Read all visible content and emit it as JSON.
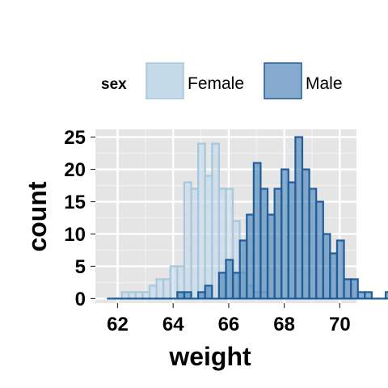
{
  "chart_data": {
    "type": "histogram",
    "xlabel": "weight",
    "ylabel": "count",
    "xlim": [
      61.2,
      70.6
    ],
    "ylim": [
      -0.7,
      26.2
    ],
    "xticks": [
      62,
      64,
      66,
      68,
      70
    ],
    "yticks": [
      0,
      5,
      10,
      15,
      20,
      25
    ],
    "grid": true,
    "legend": {
      "title": "sex",
      "position": "top"
    },
    "bin_start": 61.65,
    "bin_width": 0.25,
    "series": [
      {
        "name": "Female",
        "fill": "#c3d9e8",
        "stroke": "#a5c8df",
        "values": [
          0,
          0,
          1,
          1,
          1,
          1,
          2,
          3,
          3,
          5,
          5,
          18,
          17,
          24,
          19,
          24,
          17,
          17,
          12,
          4,
          2,
          1,
          1,
          0,
          0,
          0,
          0,
          0,
          0,
          0,
          0,
          0,
          0,
          0,
          0,
          0,
          0,
          0,
          0,
          0,
          0,
          0,
          0,
          0,
          0
        ]
      },
      {
        "name": "Male",
        "fill": "#3e7bb2",
        "stroke": "#1f5d9b",
        "values": [
          0,
          0,
          0,
          0,
          0,
          0,
          0,
          0,
          0,
          0,
          1,
          1,
          0,
          1,
          2,
          0,
          4,
          6,
          4,
          9,
          13,
          21,
          17,
          13,
          17,
          20,
          18,
          25,
          20,
          17,
          15,
          10,
          7,
          9,
          3,
          3,
          1,
          1,
          0,
          0,
          1,
          0,
          0,
          0,
          0
        ]
      }
    ]
  },
  "colors": {
    "panel_bg": "#e5e5e5",
    "grid_major": "#ffffff",
    "grid_minor": "#f2f2f2"
  }
}
